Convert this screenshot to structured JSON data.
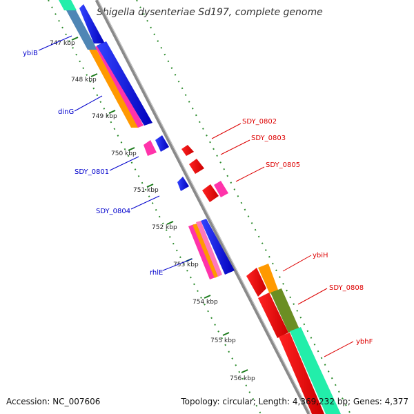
{
  "title": "Shigella dysenteriae Sd197, complete genome",
  "accession": "Accession: NC_007606",
  "topology": "Topology: circular; Length: 4,369,232 bp; Genes: 4,377",
  "ticks": [
    "747 kbp",
    "748 kbp",
    "749 kbp",
    "750 kbp",
    "751 kbp",
    "752 kbp",
    "753 kbp",
    "754 kbp",
    "755 kbp",
    "756 kbp"
  ],
  "labels_left": [
    "ybiB",
    "dinG",
    "SDY_0801",
    "SDY_0804",
    "rhlE"
  ],
  "labels_right": [
    "SDY_0802",
    "SDY_0803",
    "SDY_0805",
    "ybiH",
    "SDY_0808",
    "ybhF"
  ],
  "colors": {
    "forward_cds": "#0000ee",
    "reverse_cds": "#ee0000",
    "pink": "#ff33aa",
    "orange": "#ff9900",
    "steel": "#4f86b5",
    "olive": "#6b8e23",
    "aqua": "#22eeaa",
    "backbone": "#8c8c8c",
    "dots": "#2a8a2a"
  }
}
